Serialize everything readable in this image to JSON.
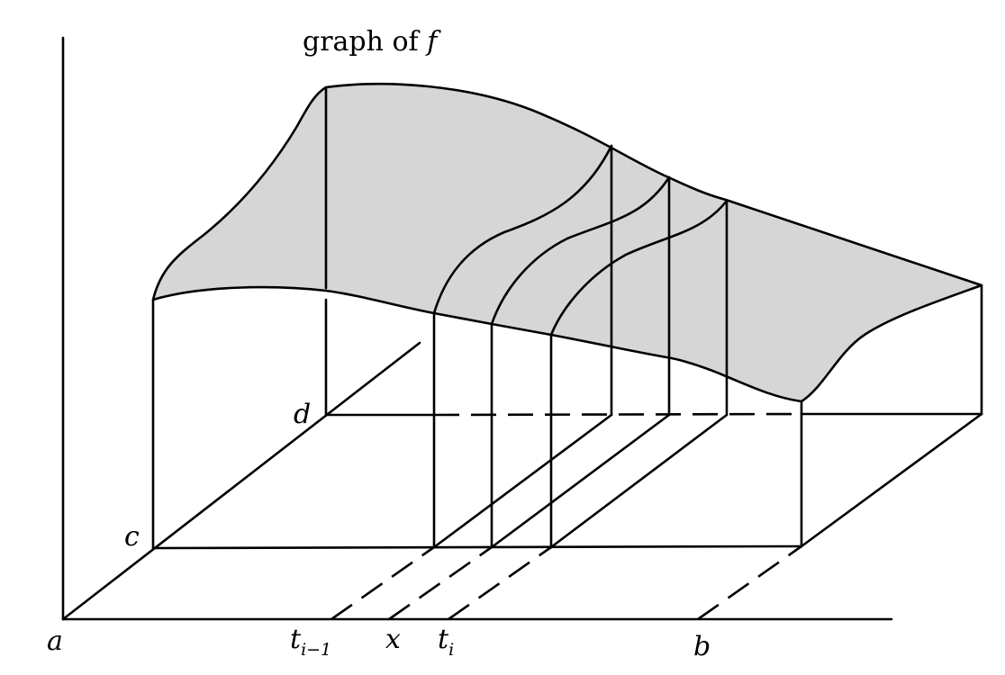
{
  "title": {
    "text": "graph of ",
    "symbol": "f"
  },
  "labels": {
    "a": "a",
    "b": "b",
    "c": "c",
    "d": "d",
    "t_prev_base": "t",
    "t_prev_sub": "i−1",
    "x": "x",
    "t_i_base": "t",
    "t_i_sub": "i"
  }
}
